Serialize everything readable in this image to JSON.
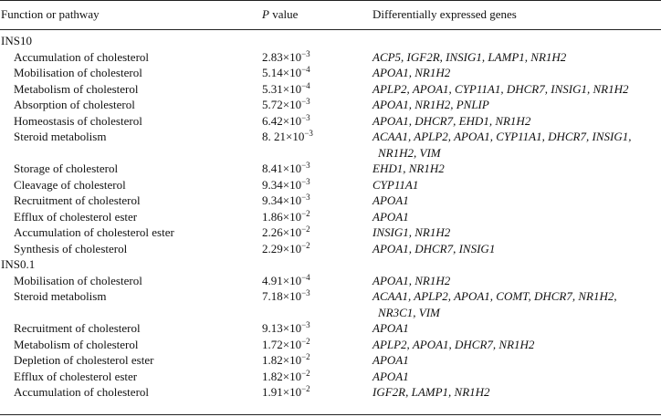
{
  "header": {
    "function_label": "Function or pathway",
    "p_label_italic": "P",
    "p_label_rest": " value",
    "genes_label": "Differentially expressed genes"
  },
  "groups": [
    {
      "label": "INS10",
      "rows": [
        {
          "fn": "Accumulation of cholesterol",
          "p_base": "2.83×10",
          "p_exp": "−3",
          "genes": [
            "ACP5, IGF2R, INSIG1, LAMP1, NR1H2"
          ]
        },
        {
          "fn": "Mobilisation of cholesterol",
          "p_base": "5.14×10",
          "p_exp": "−4",
          "genes": [
            "APOA1, NR1H2"
          ]
        },
        {
          "fn": "Metabolism of cholesterol",
          "p_base": "5.31×10",
          "p_exp": "−4",
          "genes": [
            "APLP2, APOA1, CYP11A1, DHCR7, INSIG1, NR1H2"
          ]
        },
        {
          "fn": "Absorption of cholesterol",
          "p_base": "5.72×10",
          "p_exp": "−3",
          "genes": [
            "APOA1, NR1H2, PNLIP"
          ]
        },
        {
          "fn": "Homeostasis of cholesterol",
          "p_base": "6.42×10",
          "p_exp": "−3",
          "genes": [
            "APOA1, DHCR7, EHD1, NR1H2"
          ]
        },
        {
          "fn": "Steroid metabolism",
          "p_base": "8. 21×10",
          "p_exp": "−3",
          "genes": [
            "ACAA1, APLP2, APOA1, CYP11A1, DHCR7, INSIG1,",
            "NR1H2, VIM"
          ]
        },
        {
          "fn": "Storage of cholesterol",
          "p_base": "8.41×10",
          "p_exp": "−3",
          "genes": [
            "EHD1, NR1H2"
          ]
        },
        {
          "fn": "Cleavage of cholesterol",
          "p_base": "9.34×10",
          "p_exp": "−3",
          "genes": [
            "CYP11A1"
          ]
        },
        {
          "fn": "Recruitment of cholesterol",
          "p_base": "9.34×10",
          "p_exp": "−3",
          "genes": [
            "APOA1"
          ]
        },
        {
          "fn": "Efflux of cholesterol ester",
          "p_base": "1.86×10",
          "p_exp": "−2",
          "genes": [
            "APOA1"
          ]
        },
        {
          "fn": "Accumulation of cholesterol ester",
          "p_base": "2.26×10",
          "p_exp": "−2",
          "genes": [
            "INSIG1, NR1H2"
          ]
        },
        {
          "fn": "Synthesis of cholesterol",
          "p_base": "2.29×10",
          "p_exp": "−2",
          "genes": [
            "APOA1, DHCR7, INSIG1"
          ]
        }
      ]
    },
    {
      "label": "INS0.1",
      "rows": [
        {
          "fn": "Mobilisation of cholesterol",
          "p_base": "4.91×10",
          "p_exp": "−4",
          "genes": [
            "APOA1, NR1H2"
          ]
        },
        {
          "fn": "Steroid metabolism",
          "p_base": "7.18×10",
          "p_exp": "−3",
          "genes": [
            "ACAA1, APLP2, APOA1, COMT, DHCR7, NR1H2,",
            "NR3C1, VIM"
          ]
        },
        {
          "fn": "Recruitment of cholesterol",
          "p_base": "9.13×10",
          "p_exp": "−3",
          "genes": [
            "APOA1"
          ]
        },
        {
          "fn": "Metabolism of cholesterol",
          "p_base": "1.72×10",
          "p_exp": "−2",
          "genes": [
            "APLP2, APOA1, DHCR7, NR1H2"
          ]
        },
        {
          "fn": "Depletion of cholesterol ester",
          "p_base": "1.82×10",
          "p_exp": "−2",
          "genes": [
            "APOA1"
          ]
        },
        {
          "fn": "Efflux of cholesterol ester",
          "p_base": "1.82×10",
          "p_exp": "−2",
          "genes": [
            "APOA1"
          ]
        },
        {
          "fn": "Accumulation of cholesterol",
          "p_base": "1.91×10",
          "p_exp": "−2",
          "genes": [
            "IGF2R, LAMP1, NR1H2"
          ]
        }
      ]
    }
  ]
}
